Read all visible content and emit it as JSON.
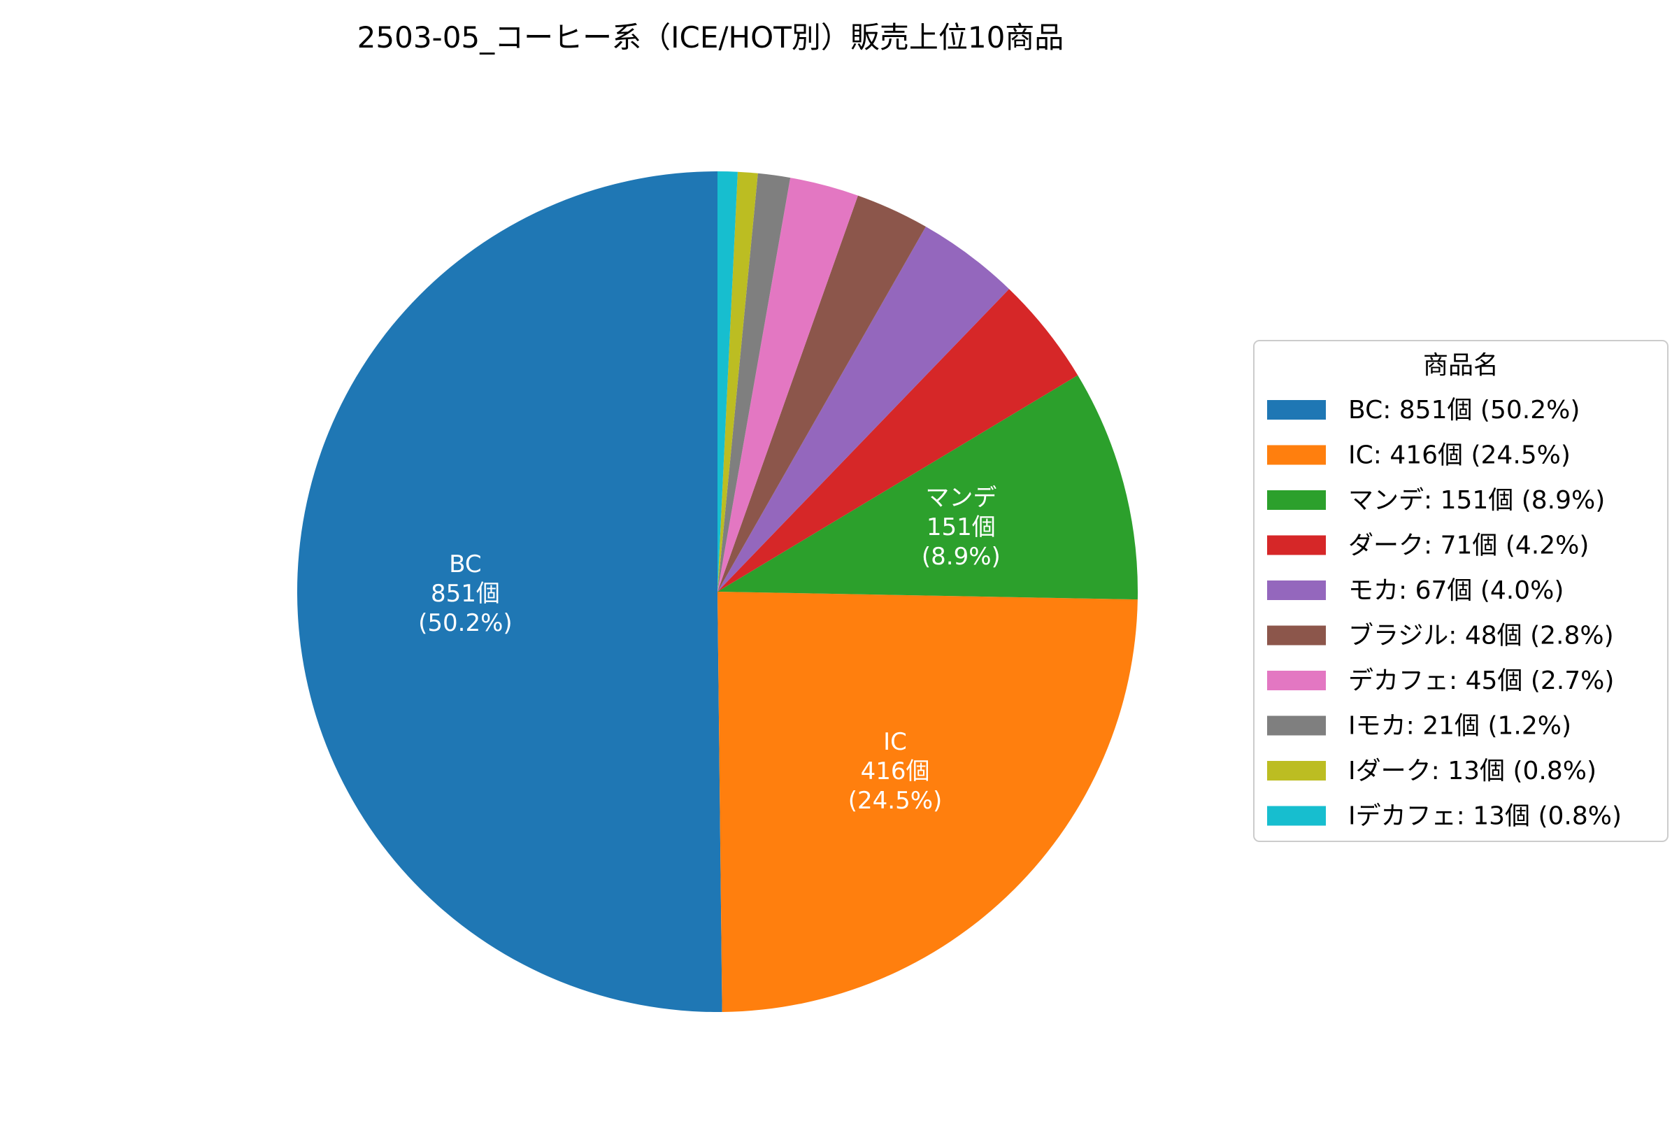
{
  "chart_data": {
    "type": "pie",
    "title": "2503-05_コーヒー系（ICE/HOT別）販売上位10商品",
    "legend": {
      "title": "商品名",
      "placement": "center-right"
    },
    "start_angle_deg": 90,
    "direction": "counterclockwise",
    "slices": [
      {
        "name": "BC",
        "value": 851,
        "percent": "50.2%",
        "color": "#1f77b4",
        "legend_label": "BC: 851個 (50.2%)",
        "inside_label": [
          "BC",
          "851個",
          "(50.2%)"
        ]
      },
      {
        "name": "IC",
        "value": 416,
        "percent": "24.5%",
        "color": "#ff7f0e",
        "legend_label": "IC: 416個 (24.5%)",
        "inside_label": [
          "IC",
          "416個",
          "(24.5%)"
        ]
      },
      {
        "name": "マンデ",
        "value": 151,
        "percent": "8.9%",
        "color": "#2ca02c",
        "legend_label": "マンデ: 151個 (8.9%)",
        "inside_label": [
          "マンデ",
          "151個",
          "(8.9%)"
        ]
      },
      {
        "name": "ダーク",
        "value": 71,
        "percent": "4.2%",
        "color": "#d62728",
        "legend_label": "ダーク: 71個 (4.2%)",
        "inside_label": []
      },
      {
        "name": "モカ",
        "value": 67,
        "percent": "4.0%",
        "color": "#9467bd",
        "legend_label": "モカ: 67個 (4.0%)",
        "inside_label": []
      },
      {
        "name": "ブラジル",
        "value": 48,
        "percent": "2.8%",
        "color": "#8c564b",
        "legend_label": "ブラジル: 48個 (2.8%)",
        "inside_label": []
      },
      {
        "name": "デカフェ",
        "value": 45,
        "percent": "2.7%",
        "color": "#e377c2",
        "legend_label": "デカフェ: 45個 (2.7%)",
        "inside_label": []
      },
      {
        "name": "Iモカ",
        "value": 21,
        "percent": "1.2%",
        "color": "#7f7f7f",
        "legend_label": "Iモカ: 21個 (1.2%)",
        "inside_label": []
      },
      {
        "name": "Iダーク",
        "value": 13,
        "percent": "0.8%",
        "color": "#bcbd22",
        "legend_label": "Iダーク: 13個 (0.8%)",
        "inside_label": []
      },
      {
        "name": "Iデカフェ",
        "value": 13,
        "percent": "0.8%",
        "color": "#17becf",
        "legend_label": "Iデカフェ: 13個 (0.8%)",
        "inside_label": []
      }
    ]
  }
}
